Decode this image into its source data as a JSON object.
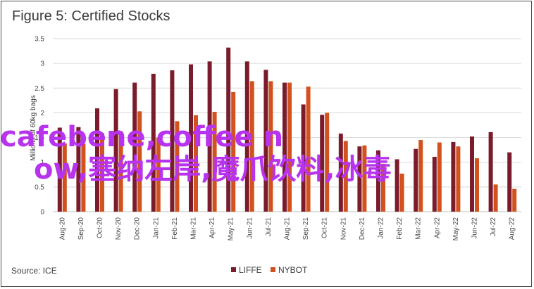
{
  "title": "Figure 5: Certified Stocks",
  "source": "Source: ICE",
  "watermark": {
    "line1": "cafebene,coffee n",
    "line2": "ow,塞纳左岸,魔爪饮料,冰毒",
    "color": "#b833ee"
  },
  "chart_data": {
    "type": "bar",
    "ylabel": "Millions of 60kg bags",
    "ylim": [
      0,
      3.5
    ],
    "yticks": [
      0,
      0.5,
      1,
      1.5,
      2,
      2.5,
      3,
      3.5
    ],
    "grid": true,
    "legend_position": "bottom",
    "categories": [
      "Aug-20",
      "Sep-20",
      "Oct-20",
      "Nov-20",
      "Dec-20",
      "Jan-21",
      "Feb-21",
      "Mar-21",
      "Apr-21",
      "May-21",
      "Jun-21",
      "Jul-21",
      "Aug-21",
      "Sep-21",
      "Oct-21",
      "Nov-21",
      "Dec-21",
      "Jan-22",
      "Feb-22",
      "Mar-22",
      "Apr-22",
      "May-22",
      "Jun-22",
      "Jul-22",
      "Aug-22"
    ],
    "series": [
      {
        "name": "LIFFE",
        "color": "#7b1c2c",
        "values": [
          1.7,
          1.71,
          2.09,
          2.48,
          2.61,
          2.79,
          2.86,
          2.98,
          3.04,
          3.32,
          3.04,
          2.87,
          2.61,
          2.17,
          1.96,
          1.58,
          1.32,
          1.24,
          1.06,
          1.27,
          1.11,
          1.41,
          1.52,
          1.61,
          1.2
        ]
      },
      {
        "name": "NYBOT",
        "color": "#d2521f",
        "values": [
          1.38,
          1.37,
          1.59,
          1.62,
          2.03,
          1.5,
          1.83,
          1.95,
          2.02,
          2.42,
          2.64,
          2.64,
          2.61,
          2.53,
          2.0,
          1.43,
          1.34,
          0.97,
          0.77,
          1.45,
          1.4,
          1.32,
          1.08,
          0.55,
          0.46
        ]
      }
    ]
  }
}
